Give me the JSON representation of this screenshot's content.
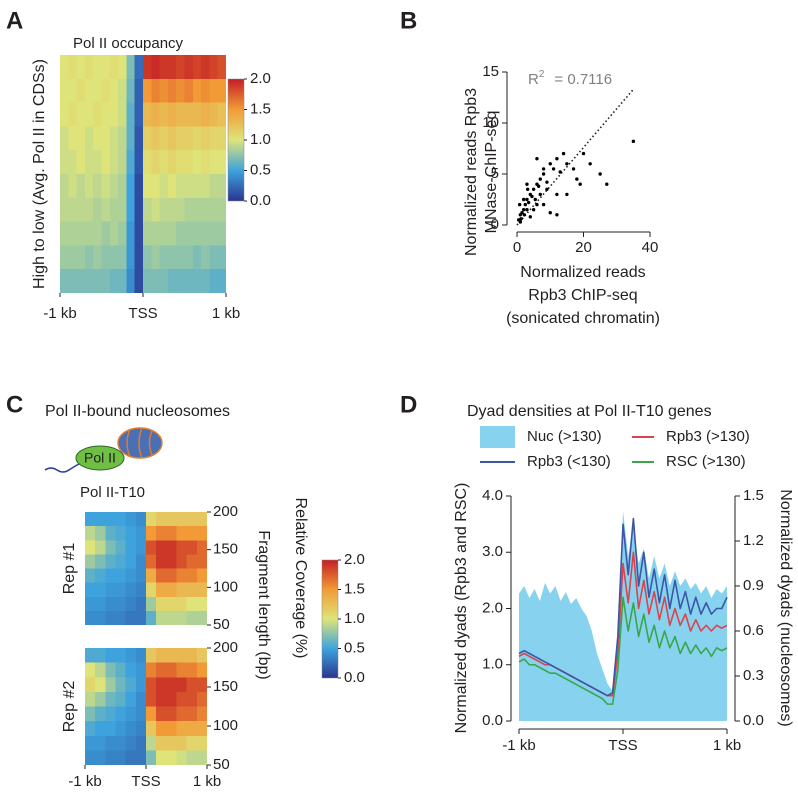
{
  "chart_data": [
    {
      "type": "heatmap",
      "panel_label": "A",
      "title": "Pol II occupancy",
      "ylabel": "High to low (Avg. Pol II in CDSs)",
      "xlim": [
        -1,
        1
      ],
      "xticks": [
        {
          "value": -1,
          "label": "-1 kb"
        },
        {
          "value": 0,
          "label": "TSS"
        },
        {
          "value": 1,
          "label": "1 kb"
        }
      ],
      "values": [
        [
          1.0,
          1.05,
          1.0,
          1.05,
          1.0,
          1.0,
          1.05,
          1.0,
          0.7,
          0.25,
          1.9,
          1.95,
          1.9,
          1.9,
          1.85,
          1.9,
          1.85,
          1.9,
          1.85,
          1.8
        ],
        [
          1.0,
          1.0,
          1.05,
          1.0,
          1.0,
          1.05,
          1.0,
          0.95,
          0.65,
          0.2,
          1.5,
          1.6,
          1.55,
          1.6,
          1.55,
          1.6,
          1.5,
          1.55,
          1.5,
          1.5
        ],
        [
          1.0,
          1.05,
          1.0,
          1.0,
          1.05,
          1.0,
          1.0,
          0.95,
          0.6,
          0.2,
          1.3,
          1.35,
          1.3,
          1.35,
          1.3,
          1.3,
          1.3,
          1.35,
          1.3,
          1.25
        ],
        [
          0.95,
          1.0,
          1.0,
          0.95,
          1.0,
          1.0,
          0.95,
          0.9,
          0.6,
          0.15,
          1.15,
          1.2,
          1.15,
          1.2,
          1.15,
          1.15,
          1.1,
          1.15,
          1.1,
          1.1
        ],
        [
          0.95,
          0.95,
          1.0,
          0.95,
          0.95,
          1.0,
          0.95,
          0.9,
          0.55,
          0.15,
          1.05,
          1.1,
          1.05,
          1.1,
          1.05,
          1.05,
          1.0,
          1.05,
          1.0,
          1.0
        ],
        [
          0.9,
          0.95,
          0.9,
          0.95,
          0.9,
          0.95,
          0.9,
          0.85,
          0.5,
          0.1,
          1.0,
          1.0,
          0.95,
          1.0,
          0.95,
          0.95,
          0.95,
          0.95,
          0.9,
          0.9
        ],
        [
          0.9,
          0.9,
          0.9,
          0.9,
          0.85,
          0.9,
          0.85,
          0.85,
          0.5,
          0.1,
          0.9,
          0.95,
          0.9,
          0.9,
          0.9,
          0.85,
          0.85,
          0.85,
          0.85,
          0.85
        ],
        [
          0.85,
          0.85,
          0.85,
          0.85,
          0.85,
          0.8,
          0.85,
          0.8,
          0.45,
          0.1,
          0.85,
          0.85,
          0.85,
          0.85,
          0.8,
          0.8,
          0.8,
          0.8,
          0.8,
          0.8
        ],
        [
          0.8,
          0.8,
          0.8,
          0.75,
          0.8,
          0.75,
          0.75,
          0.75,
          0.45,
          0.1,
          0.75,
          0.8,
          0.75,
          0.75,
          0.75,
          0.75,
          0.7,
          0.75,
          0.7,
          0.7
        ],
        [
          0.7,
          0.7,
          0.7,
          0.7,
          0.7,
          0.7,
          0.65,
          0.65,
          0.4,
          0.1,
          0.7,
          0.7,
          0.7,
          0.65,
          0.65,
          0.65,
          0.65,
          0.65,
          0.6,
          0.6
        ]
      ],
      "colorbar": {
        "lim": [
          0,
          2
        ],
        "ticks": [
          {
            "value": 2,
            "label": "2.0"
          },
          1.5,
          {
            "value": 1,
            "label": "1.0"
          },
          0.5,
          {
            "value": 0,
            "label": "0.0"
          }
        ]
      }
    },
    {
      "type": "scatter",
      "panel_label": "B",
      "annotation": "R",
      "annotation_sup": "2",
      "annotation_value": "= 0.7116",
      "ylabel": [
        "Normalized reads Rpb3",
        "MNase-ChIP-seq"
      ],
      "xlabel": [
        "Normalized reads",
        "Rpb3 ChIP-seq",
        "(sonicated chromatin)"
      ],
      "xlim": [
        0,
        40
      ],
      "ylim": [
        0,
        15
      ],
      "xticks": [
        0,
        20,
        40
      ],
      "yticks": [
        0,
        5,
        10,
        15
      ],
      "color": "#000000",
      "x": [
        0.5,
        1,
        1.5,
        2,
        2.5,
        3,
        3.5,
        4,
        4.5,
        5,
        5.5,
        6,
        6.5,
        7,
        8,
        9,
        10,
        11,
        12,
        13,
        14,
        15,
        17,
        19,
        20,
        22,
        25,
        27,
        35,
        1,
        2,
        3,
        4,
        5,
        6,
        7,
        8,
        9,
        10,
        12,
        3,
        6,
        8,
        12,
        15,
        18,
        0.8,
        1.2,
        2.2,
        3.2
      ],
      "y": [
        0.5,
        1,
        1.2,
        1.5,
        2,
        2.5,
        2.2,
        3,
        2.8,
        3.5,
        2.5,
        4,
        3.8,
        4.5,
        5,
        4.2,
        6,
        5.5,
        6.5,
        5.2,
        7,
        6,
        5.5,
        4,
        7,
        6,
        5,
        4,
        8.2,
        0.3,
        2.5,
        1.5,
        0.8,
        1.5,
        2,
        3,
        2,
        3.5,
        1.2,
        3,
        4,
        6.5,
        5.5,
        1,
        3,
        4.5,
        2,
        0.6,
        1,
        3.5
      ],
      "trend_line": {
        "x": [
          0,
          35
        ],
        "y": [
          0,
          13.3
        ]
      }
    },
    {
      "type": "heatmap",
      "panel_label": "C",
      "subtitle": "Pol II-bound nucleosomes",
      "cartoon_label": "Pol II",
      "title": "Pol II-T10",
      "ylabel_right": "Fragment length (bp)",
      "colorbar_label": "Relative Coverage (%)",
      "xlim": [
        -1,
        1
      ],
      "xticks": [
        {
          "value": -1,
          "label": "-1 kb"
        },
        {
          "value": 0,
          "label": "TSS"
        },
        {
          "value": 1,
          "label": "1 kb"
        }
      ],
      "ylim": [
        50,
        200
      ],
      "yticks": [
        200,
        150,
        100,
        50
      ],
      "panels": [
        {
          "name": "Rep #1",
          "values": [
            [
              0.5,
              0.5,
              0.5,
              0.5,
              0.45,
              0.4,
              1.1,
              1.2,
              1.2,
              1.2,
              1.2,
              1.2
            ],
            [
              0.9,
              0.8,
              0.6,
              0.55,
              0.5,
              0.45,
              1.5,
              1.6,
              1.6,
              1.5,
              1.5,
              1.5
            ],
            [
              1.0,
              0.9,
              0.7,
              0.6,
              0.5,
              0.45,
              1.8,
              1.9,
              1.9,
              1.8,
              1.8,
              1.7
            ],
            [
              0.8,
              0.7,
              0.6,
              0.55,
              0.5,
              0.4,
              1.7,
              1.9,
              1.9,
              1.8,
              1.7,
              1.7
            ],
            [
              0.6,
              0.55,
              0.5,
              0.5,
              0.45,
              0.4,
              1.4,
              1.7,
              1.7,
              1.6,
              1.6,
              1.5
            ],
            [
              0.5,
              0.5,
              0.45,
              0.45,
              0.4,
              0.35,
              1.1,
              1.4,
              1.4,
              1.3,
              1.3,
              1.3
            ],
            [
              0.45,
              0.45,
              0.4,
              0.4,
              0.35,
              0.3,
              0.8,
              1.1,
              1.1,
              1.1,
              1.0,
              1.0
            ],
            [
              0.4,
              0.4,
              0.35,
              0.35,
              0.3,
              0.3,
              0.6,
              0.9,
              0.9,
              0.9,
              0.85,
              0.85
            ]
          ]
        },
        {
          "name": "Rep #2",
          "values": [
            [
              0.55,
              0.55,
              0.5,
              0.5,
              0.45,
              0.4,
              1.2,
              1.3,
              1.3,
              1.3,
              1.3,
              1.2
            ],
            [
              1.0,
              0.9,
              0.7,
              0.6,
              0.5,
              0.45,
              1.6,
              1.7,
              1.7,
              1.6,
              1.6,
              1.5
            ],
            [
              1.1,
              1.0,
              0.8,
              0.65,
              0.55,
              0.45,
              1.8,
              1.9,
              1.9,
              1.9,
              1.8,
              1.8
            ],
            [
              0.9,
              0.8,
              0.65,
              0.6,
              0.5,
              0.4,
              1.8,
              1.9,
              1.9,
              1.8,
              1.8,
              1.7
            ],
            [
              0.7,
              0.6,
              0.55,
              0.5,
              0.45,
              0.4,
              1.5,
              1.8,
              1.8,
              1.7,
              1.7,
              1.6
            ],
            [
              0.55,
              0.5,
              0.5,
              0.45,
              0.4,
              0.35,
              1.2,
              1.5,
              1.5,
              1.4,
              1.4,
              1.4
            ],
            [
              0.45,
              0.45,
              0.4,
              0.4,
              0.35,
              0.3,
              0.9,
              1.2,
              1.2,
              1.2,
              1.1,
              1.1
            ],
            [
              0.4,
              0.4,
              0.35,
              0.35,
              0.3,
              0.3,
              0.7,
              1.0,
              1.0,
              0.95,
              0.9,
              0.9
            ]
          ]
        }
      ],
      "colorbar": {
        "lim": [
          0,
          2
        ],
        "ticks": [
          {
            "value": 2,
            "label": "2.0"
          },
          1.5,
          {
            "value": 1,
            "label": "1.0"
          },
          0.5,
          {
            "value": 0,
            "label": "0.0"
          }
        ]
      }
    },
    {
      "type": "line",
      "panel_label": "D",
      "title": "Dyad densities at Pol II-T10 genes",
      "ylabel": "Normalized dyads (Rpb3 and RSC)",
      "y2label": "Normalized dyads (nucleosomes)",
      "xlim": [
        -1,
        1
      ],
      "xticks": [
        {
          "value": -1,
          "label": "-1 kb"
        },
        {
          "value": 0,
          "label": "TSS"
        },
        {
          "value": 1,
          "label": "1 kb"
        }
      ],
      "ylim": [
        0,
        4
      ],
      "yticks": [
        {
          "value": 0,
          "label": "0.0"
        },
        {
          "value": 1,
          "label": "1.0"
        },
        {
          "value": 2,
          "label": "2.0"
        },
        {
          "value": 3,
          "label": "3.0"
        },
        {
          "value": 4,
          "label": "4.0"
        }
      ],
      "y2lim": [
        0,
        1.5
      ],
      "y2ticks": [
        {
          "value": 0,
          "label": "0.0"
        },
        0.3,
        0.6,
        0.9,
        1.2,
        1.5
      ],
      "x": [
        -1,
        -0.95,
        -0.9,
        -0.85,
        -0.8,
        -0.75,
        -0.7,
        -0.65,
        -0.6,
        -0.55,
        -0.5,
        -0.45,
        -0.4,
        -0.35,
        -0.3,
        -0.25,
        -0.2,
        -0.15,
        -0.1,
        -0.05,
        0,
        0.05,
        0.1,
        0.15,
        0.2,
        0.25,
        0.3,
        0.35,
        0.4,
        0.45,
        0.5,
        0.55,
        0.6,
        0.65,
        0.7,
        0.75,
        0.8,
        0.85,
        0.9,
        0.95,
        1
      ],
      "series": [
        {
          "name": "Nuc (>130)",
          "color": "#87d3ef",
          "style": "area",
          "axis": "y2",
          "values": [
            0.85,
            0.9,
            0.82,
            0.88,
            0.8,
            0.92,
            0.85,
            0.9,
            0.8,
            0.86,
            0.78,
            0.82,
            0.75,
            0.7,
            0.6,
            0.45,
            0.35,
            0.25,
            0.2,
            0.55,
            1.4,
            1.1,
            1.3,
            1.05,
            1.15,
            0.95,
            1.1,
            0.95,
            1.05,
            0.9,
            1.0,
            0.9,
            0.95,
            0.88,
            0.92,
            0.85,
            0.9,
            0.82,
            0.88,
            0.85,
            0.9
          ]
        },
        {
          "name": "Rpb3 (>130)",
          "color": "#d9444f",
          "values": [
            1.15,
            1.2,
            1.15,
            1.1,
            1.05,
            1.0,
            1.0,
            0.95,
            0.9,
            0.85,
            0.8,
            0.75,
            0.7,
            0.65,
            0.6,
            0.55,
            0.5,
            0.45,
            0.45,
            1.2,
            2.8,
            2.1,
            3.0,
            2.0,
            2.5,
            1.9,
            2.3,
            1.8,
            2.2,
            1.7,
            2.0,
            1.7,
            1.9,
            1.6,
            1.8,
            1.6,
            1.7,
            1.6,
            1.7,
            1.65,
            1.7
          ]
        },
        {
          "name": "Rpb3 (<130)",
          "color": "#3a57a8",
          "values": [
            1.2,
            1.25,
            1.2,
            1.15,
            1.1,
            1.05,
            1.0,
            0.95,
            0.9,
            0.85,
            0.8,
            0.75,
            0.7,
            0.65,
            0.6,
            0.55,
            0.5,
            0.45,
            0.5,
            1.5,
            3.5,
            2.6,
            3.6,
            2.4,
            3.0,
            2.2,
            2.7,
            2.1,
            2.6,
            2.0,
            2.5,
            2.0,
            2.3,
            1.9,
            2.2,
            1.9,
            2.1,
            1.9,
            2.0,
            2.0,
            2.2
          ]
        },
        {
          "name": "RSC (>130)",
          "color": "#3aa64a",
          "values": [
            1.05,
            1.1,
            1.0,
            1.0,
            0.95,
            0.9,
            0.85,
            0.85,
            0.8,
            0.75,
            0.7,
            0.65,
            0.6,
            0.55,
            0.5,
            0.45,
            0.4,
            0.3,
            0.3,
            0.9,
            2.2,
            1.6,
            2.1,
            1.5,
            1.9,
            1.4,
            1.7,
            1.3,
            1.6,
            1.3,
            1.5,
            1.2,
            1.4,
            1.2,
            1.35,
            1.2,
            1.3,
            1.15,
            1.3,
            1.25,
            1.3
          ]
        }
      ]
    }
  ]
}
